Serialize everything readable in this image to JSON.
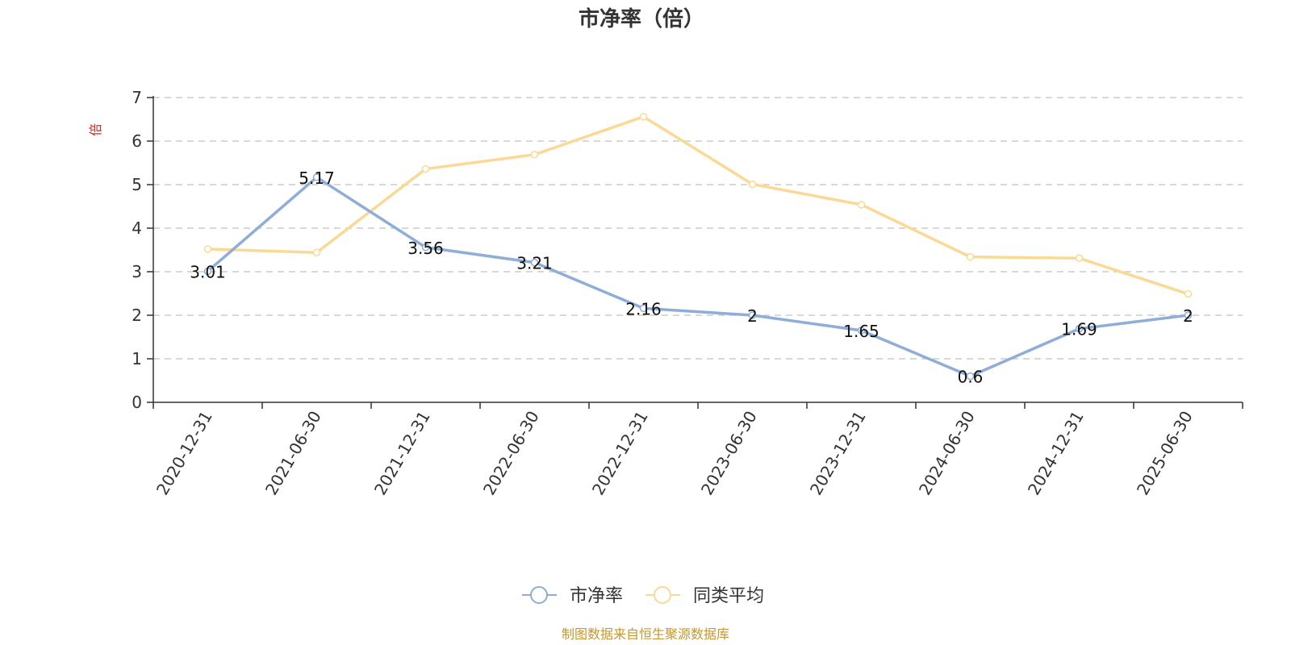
{
  "chart_data": {
    "type": "line",
    "title": "市净率（倍）",
    "y_unit": "倍",
    "categories": [
      "2020-12-31",
      "2021-06-30",
      "2021-12-31",
      "2022-06-30",
      "2022-12-31",
      "2023-06-30",
      "2023-12-31",
      "2024-06-30",
      "2024-12-31",
      "2025-06-30"
    ],
    "series": [
      {
        "name": "市净率",
        "color": "#8eadd8",
        "values": [
          3.01,
          5.17,
          3.56,
          3.21,
          2.16,
          2,
          1.65,
          0.6,
          1.69,
          2
        ],
        "labels": [
          "3.01",
          "5.17",
          "3.56",
          "3.21",
          "2.16",
          "2",
          "1.65",
          "0.6",
          "1.69",
          "2"
        ]
      },
      {
        "name": "同类平均",
        "color": "#fbd995",
        "values": [
          3.52,
          3.44,
          5.36,
          5.69,
          6.56,
          5.01,
          4.54,
          3.34,
          3.31,
          2.49
        ]
      }
    ],
    "ylim": [
      0,
      7
    ],
    "yticks": [
      "0",
      "1",
      "2",
      "3",
      "4",
      "5",
      "6",
      "7"
    ],
    "grid": true,
    "legend_position": "bottom-center"
  },
  "source": "制图数据来自恒生聚源数据库"
}
